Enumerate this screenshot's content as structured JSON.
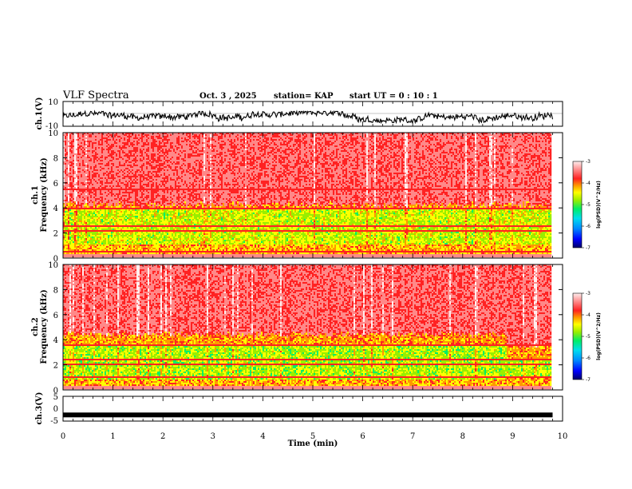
{
  "header": {
    "title": "VLF Spectra",
    "date": "Oct. 3 , 2025",
    "station": "station= KAP",
    "start": "start UT = 0 : 10 : 1"
  },
  "colors": {
    "spectrogram_scale": [
      "#000066",
      "#0000ff",
      "#0088ff",
      "#00ddee",
      "#00ee66",
      "#99ee00",
      "#ffff00",
      "#ff9900",
      "#ff2222",
      "#ff8888",
      "#ffeeee"
    ]
  },
  "chart_data": [
    {
      "name": "ch1-waveform",
      "type": "line",
      "ylabel": "ch.1(V)",
      "ylim": [
        -10,
        10
      ],
      "yticks": [
        "10",
        "-10"
      ],
      "xlim": [
        0,
        10
      ],
      "x_start": 0,
      "x_end": 9.8,
      "amplitude_range": [
        -7,
        2
      ]
    },
    {
      "name": "ch1-spectrogram",
      "type": "heatmap",
      "ylabel": "ch.1",
      "ylabel2": "Frequency (kHz)",
      "ylim": [
        0,
        10
      ],
      "yticks": [
        "0",
        "2",
        "4",
        "6",
        "8",
        "10"
      ],
      "xlim": [
        0,
        10
      ],
      "x_end": 9.8,
      "noise_floor_khz": 4.2,
      "quiet_band_khz": [
        1.0,
        3.9
      ],
      "lines_khz": [
        5.5,
        3.9,
        2.5,
        2.1,
        0.4
      ],
      "colorbar": {
        "label": "log(PSD)(V^2/Hz)",
        "range": [
          -7,
          -3
        ],
        "ticks": [
          "-3",
          "-4",
          "-5",
          "-6",
          "-7"
        ]
      }
    },
    {
      "name": "ch2-spectrogram",
      "type": "heatmap",
      "ylabel": "ch.2",
      "ylabel2": "Frequency (kHz)",
      "ylim": [
        0,
        10
      ],
      "yticks": [
        "0",
        "2",
        "4",
        "6",
        "8",
        "10"
      ],
      "xlim": [
        0,
        10
      ],
      "x_end": 9.8,
      "noise_floor_khz": 4.4,
      "quiet_band_khz": [
        0.8,
        3.5
      ],
      "lines_khz": [
        3.5,
        2.4,
        2.0,
        1.0
      ],
      "change_at_min": 8.85,
      "colorbar": {
        "label": "log(PSD)(V^2/Hz)",
        "range": [
          -7,
          -3
        ],
        "ticks": [
          "-3",
          "-4",
          "-5",
          "-6",
          "-7"
        ]
      }
    },
    {
      "name": "ch3-waveform",
      "type": "line",
      "ylabel": "ch.3(V)",
      "ylim": [
        -5,
        5
      ],
      "yticks": [
        "5",
        "0",
        "-5"
      ],
      "xlim": [
        0,
        10
      ],
      "x_end": 9.8,
      "level": -2.5
    },
    {
      "name": "time-axis",
      "type": "axis",
      "xlabel": "Time (min)",
      "xticks": [
        "0",
        "1",
        "2",
        "3",
        "4",
        "5",
        "6",
        "7",
        "8",
        "9",
        "10"
      ]
    }
  ]
}
